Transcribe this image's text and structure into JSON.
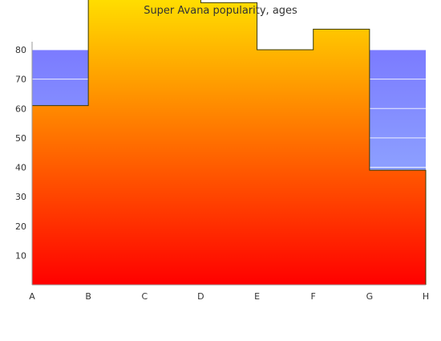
{
  "chart_data": {
    "type": "area",
    "title": "Super Avana popularity, ages",
    "xlabel": "",
    "ylabel": "",
    "categories": [
      "A",
      "B",
      "C",
      "D",
      "E",
      "F",
      "G",
      "H"
    ],
    "step": true,
    "series": [
      {
        "values": [
          61,
          100,
          100,
          96,
          80,
          87,
          39,
          39
        ],
        "fill_gradient": [
          "#ffdd00",
          "#ff0000"
        ]
      }
    ],
    "background_band": {
      "upper": 80,
      "gradient": [
        "#7b7bff",
        "#9ec3ff"
      ]
    },
    "y_ticks": [
      10,
      20,
      30,
      40,
      50,
      60,
      70,
      80
    ],
    "ylim": [
      0,
      100
    ],
    "grid": true,
    "legend": "none"
  }
}
